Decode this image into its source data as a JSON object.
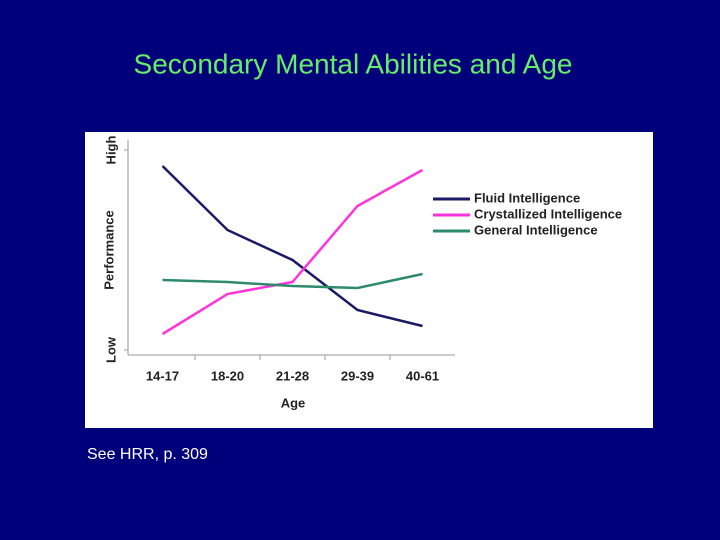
{
  "slide": {
    "title": "Secondary Mental Abilities and Age",
    "note": "See HRR, p. 309"
  },
  "chart_data": {
    "type": "line",
    "x_label": "Age",
    "y_label": "Performance",
    "categories": [
      "14-17",
      "18-20",
      "21-28",
      "29-39",
      "40-61"
    ],
    "series": [
      {
        "name": "Fluid Intelligence",
        "color": "#1a1a66",
        "values": [
          92,
          60,
          45,
          20,
          12
        ]
      },
      {
        "name": "Crystallized Intelligence",
        "color": "#ff33dd",
        "values": [
          8,
          28,
          34,
          72,
          90
        ]
      },
      {
        "name": "General Intelligence",
        "color": "#2e8b6a",
        "values": [
          35,
          34,
          32,
          31,
          38
        ]
      }
    ],
    "ylim": [
      0,
      100
    ],
    "yticks": [
      {
        "value": 0,
        "label": "Low"
      },
      {
        "value": 100,
        "label": "High"
      }
    ],
    "legend": "right"
  }
}
